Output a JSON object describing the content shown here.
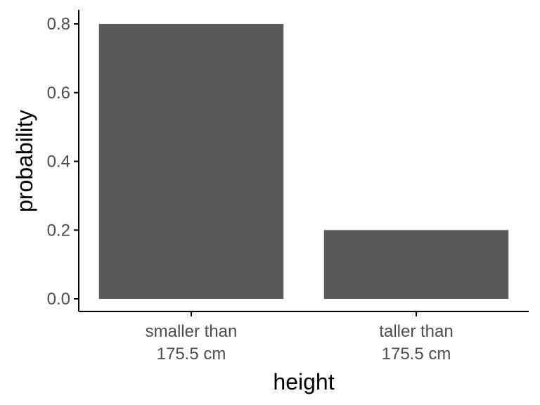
{
  "chart_data": {
    "type": "bar",
    "categories": [
      [
        "smaller than",
        "175.5 cm"
      ],
      [
        "taller than",
        "175.5 cm"
      ]
    ],
    "values": [
      0.8,
      0.2
    ],
    "xlabel": "height",
    "ylabel": "probability",
    "ylim": [
      0,
      0.8
    ],
    "yticks": [
      0.0,
      0.2,
      0.4,
      0.6,
      0.8
    ],
    "ytick_labels": [
      "0.0",
      "0.2",
      "0.4",
      "0.6",
      "0.8"
    ],
    "grid": false,
    "bar_color": "#595959",
    "axis_color": "#000000"
  }
}
